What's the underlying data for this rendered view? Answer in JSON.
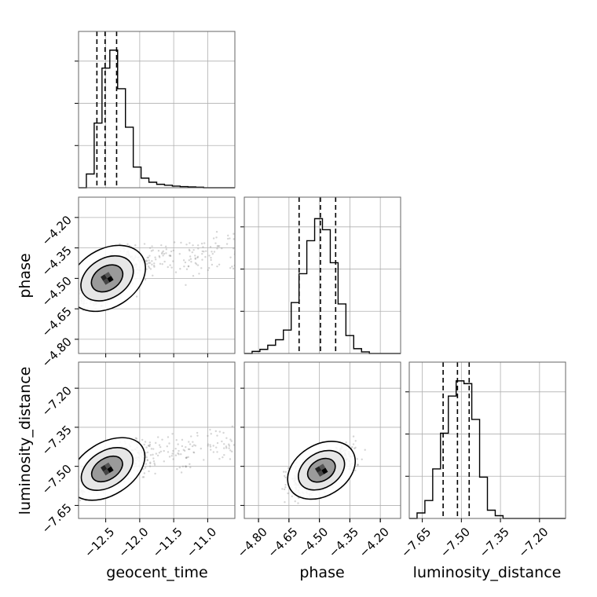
{
  "chart_data": {
    "type": "corner",
    "parameters": [
      "geocent_time",
      "phase",
      "luminosity_distance"
    ],
    "ranges": {
      "geocent_time": [
        -12.9,
        -10.6
      ],
      "phase": [
        -4.87,
        -4.1
      ],
      "luminosity_distance": [
        -7.7,
        -7.1
      ]
    },
    "tick_labels": {
      "geocent_time": [
        "−12.5",
        "−12.0",
        "−11.5",
        "−11.0"
      ],
      "phase": [
        "−4.80",
        "−4.65",
        "−4.50",
        "−4.35",
        "−4.20"
      ],
      "luminosity_distance": [
        "−7.65",
        "−7.50",
        "−7.35",
        "−7.20"
      ]
    },
    "tick_values": {
      "geocent_time": [
        -12.5,
        -12.0,
        -11.5,
        -11.0
      ],
      "phase": [
        -4.8,
        -4.65,
        -4.5,
        -4.35,
        -4.2
      ],
      "luminosity_distance": [
        -7.65,
        -7.5,
        -7.35,
        -7.2
      ]
    },
    "quantiles": {
      "geocent_time": [
        -12.63,
        -12.51,
        -12.34
      ],
      "phase": [
        -4.6,
        -4.495,
        -4.42
      ],
      "luminosity_distance": [
        -7.57,
        -7.515,
        -7.47
      ]
    },
    "histograms": {
      "geocent_time": [
        0.0,
        0.1,
        0.47,
        0.87,
        1.0,
        0.72,
        0.44,
        0.15,
        0.07,
        0.04,
        0.025,
        0.018,
        0.012,
        0.008,
        0.006,
        0.004,
        0.0,
        0.0,
        0.0,
        0.0
      ],
      "phase": [
        0.0,
        0.015,
        0.03,
        0.06,
        0.1,
        0.17,
        0.37,
        0.58,
        0.82,
        0.98,
        0.9,
        0.66,
        0.36,
        0.13,
        0.035,
        0.012,
        0.0,
        0.0,
        0.0,
        0.0
      ],
      "luminosity_distance": [
        0.0,
        0.04,
        0.13,
        0.36,
        0.62,
        0.89,
        1.0,
        0.98,
        0.72,
        0.3,
        0.06,
        0.02,
        0.0,
        0.0,
        0.0,
        0.0,
        0.0,
        0.0,
        0.0,
        0.0
      ]
    },
    "contours_2d": [
      {
        "x": "geocent_time",
        "y": "phase",
        "center": [
          -12.48,
          -4.5
        ],
        "spread": [
          0.22,
          0.055
        ],
        "corr": 0.6
      },
      {
        "x": "geocent_time",
        "y": "luminosity_distance",
        "center": [
          -12.48,
          -7.51
        ],
        "spread": [
          0.22,
          0.04
        ],
        "corr": 0.65
      },
      {
        "x": "phase",
        "y": "luminosity_distance",
        "center": [
          -4.49,
          -7.515
        ],
        "spread": [
          0.065,
          0.037
        ],
        "corr": 0.6
      }
    ],
    "xlabels": [
      "geocent_time",
      "phase",
      "luminosity_distance"
    ],
    "ylabels": [
      "",
      "phase",
      "luminosity_distance"
    ],
    "grid": true
  }
}
